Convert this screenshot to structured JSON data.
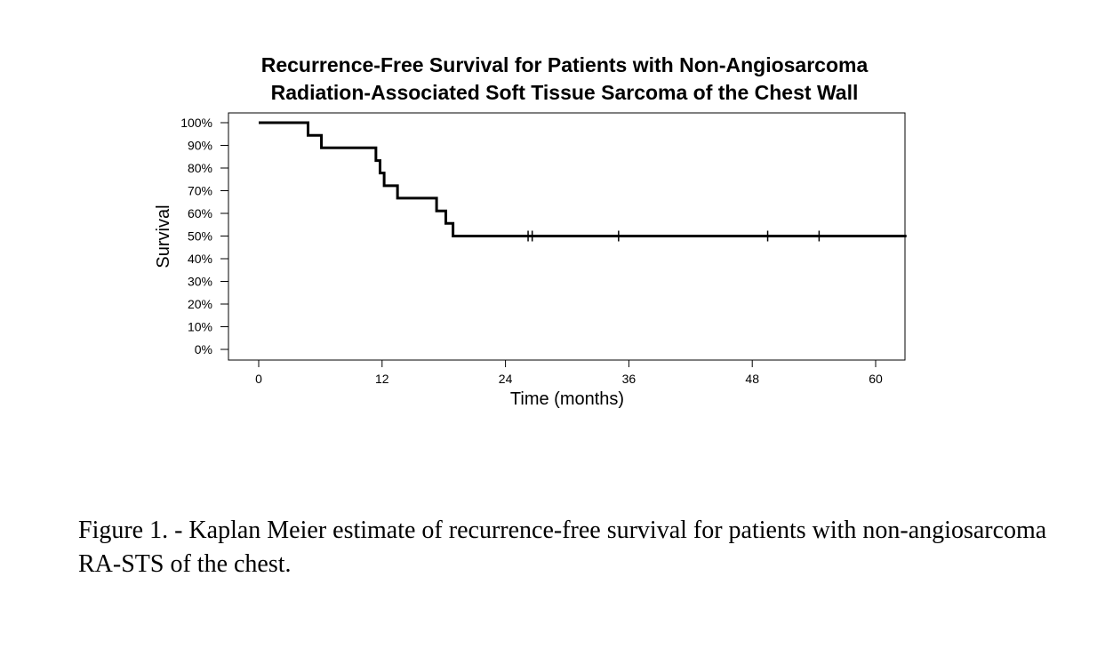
{
  "chart_data": {
    "type": "line",
    "subtype": "kaplan-meier step",
    "title": "Recurrence-Free Survival for Patients with Non-Angiosarcoma Radiation-Associated Soft Tissue Sarcoma of the Chest Wall",
    "title_lines": [
      "Recurrence-Free Survival for Patients with Non-Angiosarcoma",
      "Radiation-Associated Soft Tissue Sarcoma of the Chest Wall"
    ],
    "xlabel": "Time (months)",
    "ylabel": "Survival",
    "xlim": [
      -3,
      63
    ],
    "ylim": [
      0,
      100
    ],
    "x_ticks": [
      0,
      12,
      24,
      36,
      48,
      60
    ],
    "y_ticks": [
      0,
      10,
      20,
      30,
      40,
      50,
      60,
      70,
      80,
      90,
      100
    ],
    "y_tick_labels": [
      "0%",
      "10%",
      "20%",
      "30%",
      "40%",
      "50%",
      "60%",
      "70%",
      "80%",
      "90%",
      "100%"
    ],
    "grid": false,
    "series": [
      {
        "x": [
          0,
          4.8,
          6.1,
          11.4,
          11.8,
          12.2,
          13.5,
          17.3,
          18.2,
          18.9,
          63
        ],
        "y": [
          100,
          94.4,
          88.9,
          83.3,
          77.8,
          72.2,
          66.7,
          61.1,
          55.6,
          50.0,
          50.0
        ],
        "censored_x": [
          26.2,
          26.6,
          35.0,
          49.5,
          54.5
        ],
        "censored_y": [
          50.0,
          50.0,
          50.0,
          50.0,
          50.0
        ],
        "color": "#000000"
      }
    ]
  },
  "caption": "Figure 1. - Kaplan Meier estimate of recurrence-free survival for patients with non-angiosarcoma RA-STS of the chest."
}
